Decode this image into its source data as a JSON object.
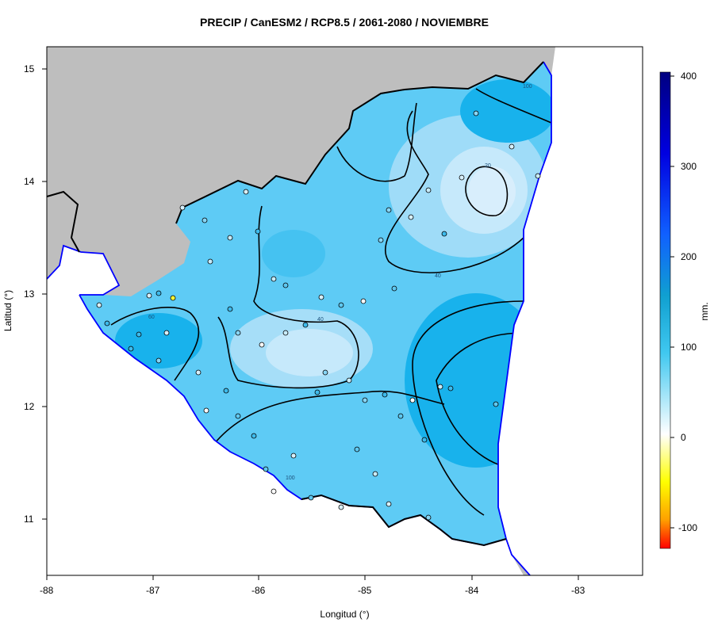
{
  "title": "PRECIP / CanESM2 / RCP8.5 / 2061-2080 / NOVIEMBRE",
  "axes": {
    "xlabel": "Longitud (°)",
    "ylabel": "Latitud (°)",
    "xticks": [
      "-88",
      "-87",
      "-86",
      "-85",
      "-84",
      "-83"
    ],
    "yticks": [
      "15",
      "14",
      "13",
      "12",
      "11"
    ]
  },
  "colorbar": {
    "label": "mm.",
    "ticks": [
      "400",
      "300",
      "200",
      "100",
      "0",
      "-100"
    ],
    "colors": [
      "#000080",
      "#0000e0",
      "#1060ff",
      "#10a0d0",
      "#40c8f0",
      "#ffffff",
      "#ffff00",
      "#ffa000",
      "#ff0000"
    ]
  },
  "contour_labels": [
    "20",
    "40",
    "40",
    "60",
    "100",
    "100"
  ],
  "colors": {
    "land_outside": "#bebebe",
    "sea": "#ffffff",
    "coast": "#0000ff",
    "border": "#000000",
    "fill_low": "#d8eefc",
    "fill_mid": "#5ecbf5",
    "fill_high": "#18b2ec"
  }
}
